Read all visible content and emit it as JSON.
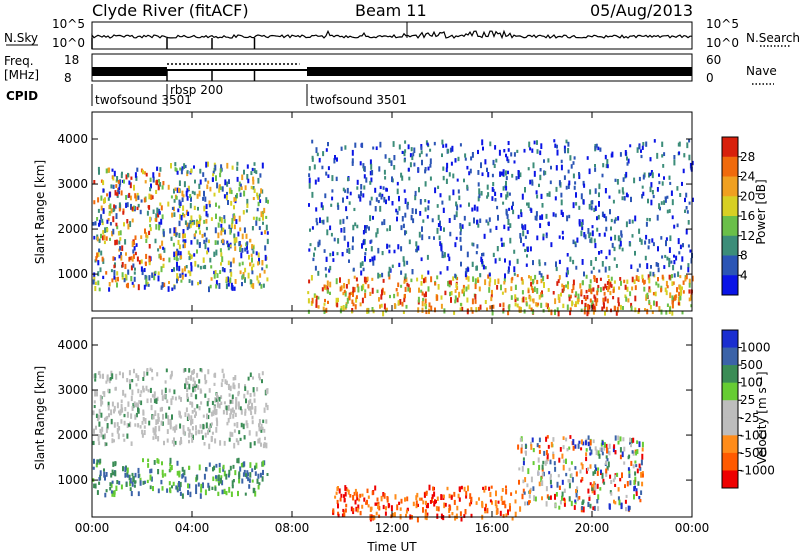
{
  "header": {
    "station": "Clyde River (fitACF)",
    "beam": "Beam 11",
    "date": "05/Aug/2013"
  },
  "top_panel": {
    "nsky_label": "N.Sky",
    "nsky_ticks": [
      "10^5",
      "10^0"
    ],
    "nsearch_label": "N.Search",
    "nsearch_ticks": [
      "10^5",
      "10^0"
    ],
    "freq_label_1": "Freq.",
    "freq_label_2": "[MHz]",
    "freq_ticks": [
      "18",
      "8"
    ],
    "nave_label": "Nave",
    "nave_ticks": [
      "60",
      "0"
    ],
    "cpid_label": "CPID",
    "cpid_segments": [
      {
        "name": "twofsound",
        "id": "3501",
        "start": 0.0,
        "end": 3.0
      },
      {
        "name": "rbsp",
        "id": "200",
        "start": 3.0,
        "end": 8.6
      },
      {
        "name": "twofsound",
        "id": "3501",
        "start": 8.6,
        "end": 24.0
      }
    ]
  },
  "colors": {
    "power": [
      "#0a14e6",
      "#2b55b5",
      "#3c8d79",
      "#6abf49",
      "#d7d024",
      "#f0a020",
      "#f06a0c",
      "#d8200c"
    ],
    "velocity": [
      "#ee0000",
      "#ff5a00",
      "#ff8c1a",
      "#bdbdbd",
      "#bdbdbd",
      "#66cc33",
      "#3a8c55",
      "#3b63a8",
      "#1a2ed0"
    ]
  },
  "chart_data": [
    {
      "type": "heatmap",
      "panel": "power",
      "xlabel": "",
      "ylabel": "Slant Range [km]",
      "xlim": [
        0,
        24
      ],
      "ylim": [
        180,
        4600
      ],
      "x_ticks": [
        "00:00",
        "04:00",
        "08:00",
        "12:00",
        "16:00",
        "20:00",
        "00:00"
      ],
      "y_ticks": [
        "1000",
        "2000",
        "3000",
        "4000"
      ],
      "colorbar_label": "Power [dB]",
      "colorbar_ticks": [
        "28",
        "24",
        "20",
        "16",
        "12",
        "8",
        "4"
      ],
      "regions": [
        {
          "x0": 0.0,
          "x1": 2.9,
          "y0": 700,
          "y1": 3400,
          "level": "mixed-high"
        },
        {
          "x0": 3.0,
          "x1": 7.0,
          "y0": 700,
          "y1": 3500,
          "level": "mixed"
        },
        {
          "x0": 8.6,
          "x1": 24.0,
          "y0": 180,
          "y1": 1000,
          "level": "high"
        },
        {
          "x0": 8.6,
          "x1": 24.0,
          "y0": 1000,
          "y1": 4000,
          "level": "low"
        },
        {
          "x0": 19.5,
          "x1": 21.0,
          "y0": 180,
          "y1": 800,
          "level": "very-high"
        }
      ]
    },
    {
      "type": "heatmap",
      "panel": "velocity",
      "xlabel": "Time UT",
      "ylabel": "Slant Range [km]",
      "xlim": [
        0,
        24
      ],
      "ylim": [
        180,
        4600
      ],
      "x_ticks": [
        "00:00",
        "04:00",
        "08:00",
        "12:00",
        "16:00",
        "20:00",
        "00:00"
      ],
      "y_ticks": [
        "1000",
        "2000",
        "3000",
        "4000"
      ],
      "colorbar_label": "Velocity [m s⁻¹]",
      "colorbar_ticks": [
        "1000",
        "500",
        "100",
        "25",
        "-25",
        "-100",
        "-500",
        "-1000"
      ],
      "regions": [
        {
          "x0": 0.0,
          "x1": 7.0,
          "y0": 700,
          "y1": 1500,
          "level": "positive"
        },
        {
          "x0": 0.0,
          "x1": 7.0,
          "y0": 1800,
          "y1": 3500,
          "level": "near-zero"
        },
        {
          "x0": 9.5,
          "x1": 17.0,
          "y0": 180,
          "y1": 900,
          "level": "negative"
        },
        {
          "x0": 17.0,
          "x1": 22.0,
          "y0": 400,
          "y1": 2000,
          "level": "mixed"
        }
      ]
    }
  ]
}
